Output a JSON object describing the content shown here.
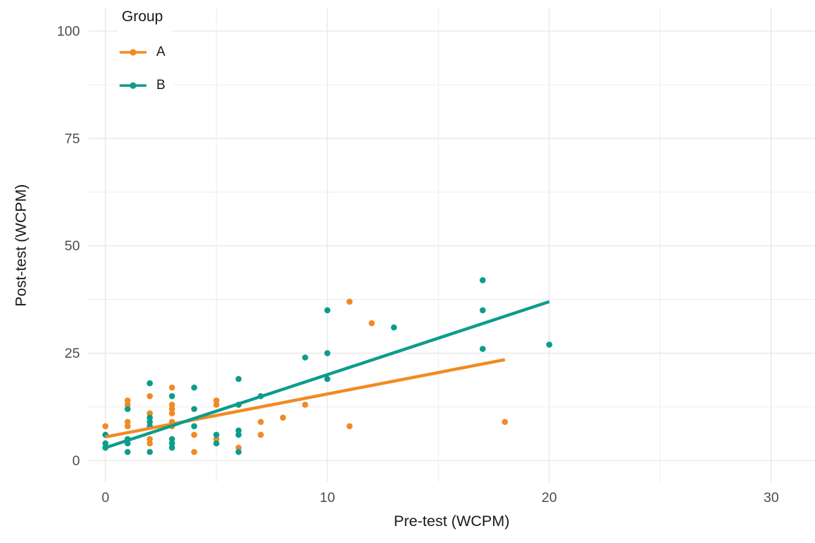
{
  "chart_data": {
    "type": "scatter",
    "title": "",
    "xlabel": "Pre-test (WCPM)",
    "ylabel": "Post-test (WCPM)",
    "xlim": [
      -0.8,
      32
    ],
    "ylim": [
      -5,
      105
    ],
    "x_ticks": [
      0,
      10,
      20,
      30
    ],
    "x_minor_ticks": [
      5,
      15,
      25
    ],
    "y_ticks": [
      0,
      25,
      50,
      75,
      100
    ],
    "y_minor_ticks": [
      12.5,
      37.5,
      62.5,
      87.5
    ],
    "grid": "major and minor, light gray on white (theme_minimal style)",
    "legend": {
      "title": "Group",
      "position": "inside-top-left"
    },
    "series": [
      {
        "name": "A",
        "color": "#F18A22",
        "points": [
          [
            0,
            8
          ],
          [
            1,
            14
          ],
          [
            1,
            13
          ],
          [
            1,
            9
          ],
          [
            1,
            8
          ],
          [
            2,
            15
          ],
          [
            2,
            11
          ],
          [
            2,
            5
          ],
          [
            2,
            4
          ],
          [
            3,
            17
          ],
          [
            3,
            13
          ],
          [
            3,
            12
          ],
          [
            3,
            11
          ],
          [
            3,
            9
          ],
          [
            3,
            8
          ],
          [
            4,
            6
          ],
          [
            4,
            2
          ],
          [
            5,
            14
          ],
          [
            5,
            13
          ],
          [
            5,
            5
          ],
          [
            6,
            3
          ],
          [
            7,
            9
          ],
          [
            7,
            6
          ],
          [
            8,
            10
          ],
          [
            9,
            13
          ],
          [
            11,
            37
          ],
          [
            11,
            8
          ],
          [
            12,
            32
          ],
          [
            18,
            9
          ]
        ],
        "trend_line": {
          "x1": 0,
          "y1": 5.5,
          "x2": 18,
          "y2": 23.5
        }
      },
      {
        "name": "B",
        "color": "#0D9C8C",
        "points": [
          [
            0,
            6
          ],
          [
            0,
            4
          ],
          [
            0,
            3
          ],
          [
            1,
            12
          ],
          [
            1,
            5
          ],
          [
            1,
            4
          ],
          [
            1,
            2
          ],
          [
            2,
            18
          ],
          [
            2,
            10
          ],
          [
            2,
            9
          ],
          [
            2,
            8
          ],
          [
            2,
            2
          ],
          [
            3,
            15
          ],
          [
            3,
            5
          ],
          [
            3,
            4
          ],
          [
            3,
            3
          ],
          [
            4,
            17
          ],
          [
            4,
            12
          ],
          [
            4,
            8
          ],
          [
            5,
            6
          ],
          [
            5,
            4
          ],
          [
            6,
            19
          ],
          [
            6,
            13
          ],
          [
            6,
            7
          ],
          [
            6,
            6
          ],
          [
            6,
            2
          ],
          [
            7,
            15
          ],
          [
            9,
            24
          ],
          [
            10,
            35
          ],
          [
            10,
            25
          ],
          [
            10,
            19
          ],
          [
            13,
            31
          ],
          [
            17,
            42
          ],
          [
            17,
            35
          ],
          [
            17,
            26
          ],
          [
            20,
            27
          ]
        ],
        "trend_line": {
          "x1": 0,
          "y1": 3,
          "x2": 20,
          "y2": 37
        }
      }
    ],
    "colors": {
      "background": "#FFFFFF",
      "grid": "#EBEBEB",
      "tick_label": "#4D4D4D",
      "axis_title": "#1A1A1A"
    }
  }
}
